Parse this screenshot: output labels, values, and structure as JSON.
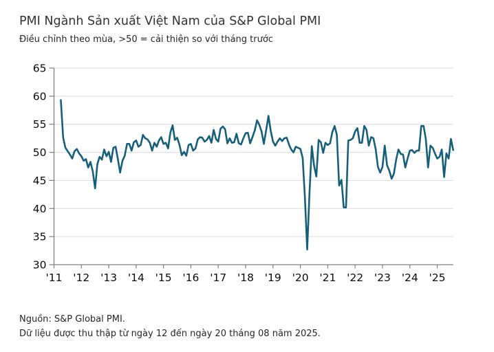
{
  "header": {
    "title": "PMI Ngành Sản xuất Việt Nam của S&P Global PMI",
    "subtitle": "Điều chỉnh theo mùa, >50 = cải thiện so với tháng trước"
  },
  "footer": {
    "source": "Nguồn: S&P Global PMI.",
    "note": "Dữ liệu được thu thập từ ngày 12 đến ngày 20 tháng 08 năm 2025."
  },
  "chart_data": {
    "type": "line",
    "title": "PMI Ngành Sản xuất Việt Nam của S&P Global PMI",
    "subtitle": "Điều chỉnh theo mùa, >50 = cải thiện so với tháng trước",
    "xlabel": "",
    "ylabel": "",
    "ylim": [
      30,
      65
    ],
    "yticks": [
      30,
      35,
      40,
      45,
      50,
      55,
      60,
      65
    ],
    "x_tick_labels": [
      "'11",
      "'12",
      "'13",
      "'14",
      "'15",
      "'16",
      "'17",
      "'18",
      "'19",
      "'20",
      "'21",
      "'22",
      "'23",
      "'24",
      "'25"
    ],
    "x_tick_start_year": 2011,
    "grid": true,
    "legend": false,
    "colors": {
      "line": "#155f7b",
      "grid": "#d9d9d9",
      "axis": "#7f7f7f",
      "tick_text": "#0a0a0a"
    },
    "series": [
      {
        "name": "PMI",
        "frequency": "monthly",
        "x_start": "2011-04",
        "x_end": "2025-08",
        "values": [
          59.3,
          52.6,
          50.8,
          50.2,
          49.6,
          48.9,
          50.2,
          50.6,
          49.8,
          49.3,
          48.5,
          48.8,
          47.3,
          48.3,
          46.6,
          43.6,
          47.9,
          49.2,
          48.7,
          50.5,
          49.3,
          50.1,
          48.3,
          50.8,
          51.0,
          48.8,
          46.4,
          48.5,
          49.4,
          51.5,
          51.5,
          50.3,
          51.8,
          52.1,
          51.0,
          51.3,
          53.1,
          52.5,
          52.3,
          51.7,
          50.3,
          51.7,
          51.0,
          52.1,
          52.7,
          51.5,
          51.7,
          50.7,
          53.5,
          54.8,
          52.2,
          52.6,
          51.3,
          49.5,
          50.1,
          49.4,
          51.3,
          51.5,
          50.3,
          50.7,
          52.3,
          52.7,
          52.6,
          51.9,
          52.2,
          52.9,
          51.7,
          54.0,
          52.4,
          51.9,
          54.2,
          54.6,
          54.1,
          51.6,
          52.5,
          51.7,
          51.8,
          53.3,
          51.6,
          51.4,
          52.5,
          53.4,
          53.5,
          51.6,
          52.7,
          53.9,
          55.7,
          54.9,
          53.7,
          51.5,
          53.9,
          56.5,
          53.8,
          51.9,
          51.2,
          51.9,
          52.5,
          52.0,
          52.5,
          52.6,
          51.4,
          50.5,
          50.0,
          51.0,
          50.8,
          50.6,
          49.0,
          41.9,
          32.7,
          42.7,
          51.1,
          47.6,
          45.7,
          52.2,
          51.8,
          49.9,
          51.7,
          51.3,
          51.6,
          53.6,
          54.7,
          53.1,
          44.1,
          45.1,
          40.2,
          40.2,
          52.1,
          52.2,
          52.5,
          53.7,
          54.3,
          51.7,
          51.7,
          54.7,
          54.0,
          51.2,
          52.7,
          52.5,
          50.6,
          47.4,
          46.4,
          47.4,
          51.2,
          47.7,
          46.7,
          45.3,
          46.2,
          48.7,
          50.5,
          49.7,
          49.6,
          47.3,
          48.9,
          50.3,
          50.4,
          49.9,
          50.3,
          50.3,
          54.7,
          54.7,
          52.4,
          47.3,
          51.2,
          50.8,
          49.8,
          48.9,
          49.2,
          50.5,
          45.6,
          49.8,
          48.9,
          52.4,
          50.4
        ]
      }
    ]
  }
}
